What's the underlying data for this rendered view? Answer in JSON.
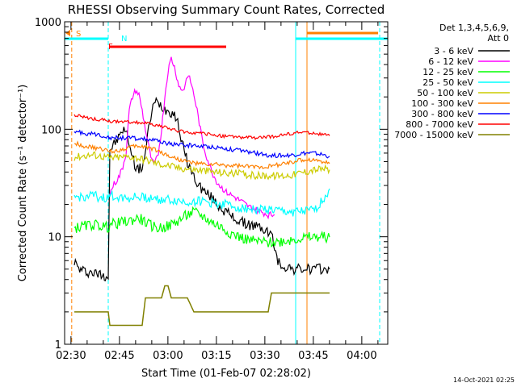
{
  "chart_data": {
    "type": "line",
    "title": "RHESSI Observing Summary Count Rates, Corrected",
    "xlabel": "Start Time (01-Feb-07 02:28:02)",
    "ylabel": "Corrected Count Rate (s⁻¹ detector⁻¹)",
    "yscale": "log",
    "ylim": [
      1,
      1000
    ],
    "xlim": [
      "02:28:02",
      "04:08:00"
    ],
    "x_ticks": [
      "02:30",
      "02:45",
      "03:00",
      "03:15",
      "03:30",
      "03:45",
      "04:00"
    ],
    "y_ticks": [
      "1",
      "10",
      "100",
      "1000"
    ],
    "grid": false,
    "legend_position": "right",
    "legend_header": [
      "Det 1,3,4,5,6,9,",
      "Att 0"
    ],
    "x_unit": "minutes after 02:28:02 start",
    "series": [
      {
        "name": "3 - 6 keV",
        "color": "#000000",
        "x": [
          3,
          4,
          5,
          6,
          7,
          8,
          9,
          10,
          11,
          12,
          13.5,
          14,
          15,
          16,
          17,
          18,
          19,
          20,
          21,
          22,
          23,
          24,
          25,
          26,
          27,
          28,
          29,
          30,
          31,
          32,
          33,
          34,
          35,
          36,
          37,
          38,
          39,
          40,
          41,
          42,
          43,
          44,
          45,
          46,
          47,
          48,
          49,
          50,
          51,
          52,
          53,
          54,
          55,
          56,
          57,
          58,
          59,
          60,
          61,
          62,
          63,
          64,
          65,
          66,
          67,
          68,
          69,
          70,
          71,
          72,
          73,
          74,
          75,
          76,
          77,
          78,
          79,
          80,
          81,
          82
        ],
        "values": [
          6.0,
          5.2,
          4.9,
          4.8,
          4.7,
          4.7,
          4.6,
          4.5,
          4.5,
          4.4,
          4.3,
          65,
          70,
          78,
          85,
          100,
          95,
          75,
          55,
          45,
          42,
          45,
          60,
          100,
          150,
          180,
          175,
          165,
          155,
          150,
          145,
          140,
          115,
          85,
          62,
          50,
          42,
          36,
          32,
          29,
          27,
          25,
          24,
          22,
          20.5,
          19,
          18,
          17,
          16,
          15.2,
          14.5,
          14,
          13.5,
          13.2,
          13,
          12.8,
          12.5,
          12.3,
          12,
          11.5,
          11,
          10.5,
          8,
          5.8,
          5.5,
          5.3,
          5.2,
          5.1,
          5.0,
          5.0,
          5.0,
          5.0,
          5.0,
          5.0,
          5.0,
          5.0,
          5.0,
          5.0,
          5.0,
          5.0
        ]
      },
      {
        "name": "6 - 12 keV",
        "color": "#ff00ff",
        "x": [
          14,
          15,
          16,
          17,
          18,
          19,
          20,
          21,
          22,
          23,
          24,
          25,
          26,
          27,
          28,
          29,
          30,
          31,
          32,
          33,
          34,
          35,
          36,
          37,
          38,
          39,
          40,
          41,
          42,
          43,
          44,
          45,
          46,
          47,
          48,
          49,
          50,
          51,
          52,
          53,
          54,
          55,
          56,
          57,
          58,
          59,
          60,
          61,
          62,
          63,
          64,
          65
        ],
        "values": [
          25,
          30,
          33,
          37,
          45,
          60,
          150,
          200,
          230,
          210,
          150,
          100,
          70,
          50,
          48,
          60,
          100,
          200,
          350,
          460,
          380,
          280,
          230,
          240,
          320,
          280,
          210,
          150,
          100,
          70,
          55,
          45,
          38,
          33,
          30,
          28,
          26,
          25,
          24,
          23,
          22,
          21,
          20,
          19,
          18.5,
          18,
          17.5,
          17,
          16.5,
          16,
          16,
          16
        ]
      },
      {
        "name": "12 - 25 keV",
        "color": "#00ff00",
        "x": [
          3,
          6,
          9,
          12,
          13.5,
          14,
          17,
          20,
          23,
          26,
          29,
          32,
          35,
          38,
          40,
          42,
          45,
          48,
          51,
          54,
          57,
          60,
          63,
          66,
          69,
          72,
          75,
          79,
          82
        ],
        "values": [
          12,
          12.5,
          13,
          12.5,
          12.2,
          13,
          13.5,
          14,
          15,
          13,
          12,
          12.5,
          14,
          16,
          17,
          16,
          14,
          12.5,
          11,
          10,
          9.3,
          9,
          8.8,
          9,
          9.3,
          9.6,
          9.8,
          10,
          9.9
        ]
      },
      {
        "name": "25 - 50 keV",
        "color": "#00ffff",
        "x": [
          3,
          6,
          9,
          12,
          13.5,
          14,
          17,
          20,
          23,
          26,
          29,
          32,
          35,
          38,
          41,
          44,
          47,
          50,
          53,
          56,
          59,
          62,
          65,
          68,
          71,
          74,
          77,
          80,
          82
        ],
        "values": [
          23,
          23.5,
          24,
          23,
          22.5,
          24,
          23.5,
          23,
          23.5,
          23,
          22.5,
          22,
          21.5,
          21,
          21.5,
          21,
          20.5,
          20,
          19,
          18.5,
          18,
          18,
          17.5,
          17,
          17,
          17,
          17.5,
          22,
          28
        ]
      },
      {
        "name": "50 - 100 keV",
        "color": "#cccc00",
        "x": [
          3,
          6,
          9,
          12,
          13.5,
          14,
          17,
          20,
          23,
          26,
          29,
          32,
          35,
          38,
          41,
          44,
          47,
          50,
          53,
          56,
          59,
          62,
          65,
          68,
          71,
          74,
          77,
          80,
          82
        ],
        "values": [
          55,
          57,
          58,
          56,
          55,
          54,
          55,
          56,
          54,
          51,
          48,
          46,
          44,
          43,
          42,
          41,
          40,
          39,
          39,
          38,
          37,
          37,
          37,
          37,
          38,
          40,
          42,
          43,
          42
        ]
      },
      {
        "name": "100 - 300 keV",
        "color": "#ff8000",
        "x": [
          3,
          6,
          9,
          12,
          13.5,
          14,
          17,
          20,
          23,
          26,
          29,
          32,
          35,
          38,
          41,
          44,
          47,
          50,
          53,
          56,
          59,
          62,
          65,
          68,
          71,
          74,
          77,
          80,
          82
        ],
        "values": [
          75,
          70,
          67,
          65,
          63,
          62,
          64,
          68,
          70,
          68,
          63,
          57,
          53,
          50,
          48,
          47,
          47,
          46,
          46,
          45,
          45,
          45,
          46,
          48,
          50,
          52,
          52,
          50,
          48
        ]
      },
      {
        "name": "300 - 800 keV",
        "color": "#0000ff",
        "x": [
          3,
          6,
          9,
          12,
          13.5,
          14,
          17,
          20,
          23,
          26,
          29,
          32,
          35,
          38,
          41,
          44,
          47,
          50,
          53,
          56,
          59,
          62,
          65,
          68,
          71,
          74,
          77,
          80,
          82
        ],
        "values": [
          95,
          92,
          90,
          87,
          85,
          84,
          83,
          83,
          82,
          80,
          77,
          74,
          72,
          71,
          70,
          69,
          68,
          66,
          64,
          62,
          60,
          58,
          57,
          57,
          58,
          60,
          60,
          58,
          56
        ]
      },
      {
        "name": "800 - 7000 keV",
        "color": "#ff0000",
        "x": [
          3,
          6,
          9,
          12,
          13.5,
          14,
          17,
          20,
          23,
          26,
          29,
          32,
          35,
          38,
          41,
          44,
          47,
          50,
          53,
          56,
          59,
          62,
          65,
          68,
          71,
          74,
          77,
          80,
          82
        ],
        "values": [
          135,
          130,
          125,
          122,
          120,
          118,
          117,
          117,
          116,
          113,
          108,
          102,
          97,
          94,
          92,
          90,
          88,
          86,
          85,
          84,
          83,
          84,
          86,
          89,
          92,
          94,
          92,
          89,
          87
        ]
      },
      {
        "name": "7000 - 15000 keV",
        "color": "#808000",
        "x": [
          3,
          13.5,
          14,
          24,
          25,
          30,
          31,
          32,
          33,
          36,
          38,
          40,
          44,
          48,
          52,
          56,
          60,
          63,
          64,
          66,
          70,
          75,
          80,
          82
        ],
        "values": [
          2,
          2,
          1.5,
          1.5,
          2.7,
          2.7,
          3.5,
          3.5,
          2.7,
          2.7,
          2.7,
          2,
          2,
          2,
          2,
          2,
          2,
          2,
          3,
          3,
          3,
          3,
          3,
          3
        ]
      }
    ]
  },
  "annotations": {
    "s_label": "S",
    "n_label": "N",
    "f_label": "F",
    "s_color": "#ff8000",
    "n_color": "#00ffff",
    "f_color": "#ff0000",
    "saa_color": "#ff8000",
    "night_color": "#00ffff"
  },
  "footer": {
    "timestamp": "14-Oct-2021 02:25"
  }
}
